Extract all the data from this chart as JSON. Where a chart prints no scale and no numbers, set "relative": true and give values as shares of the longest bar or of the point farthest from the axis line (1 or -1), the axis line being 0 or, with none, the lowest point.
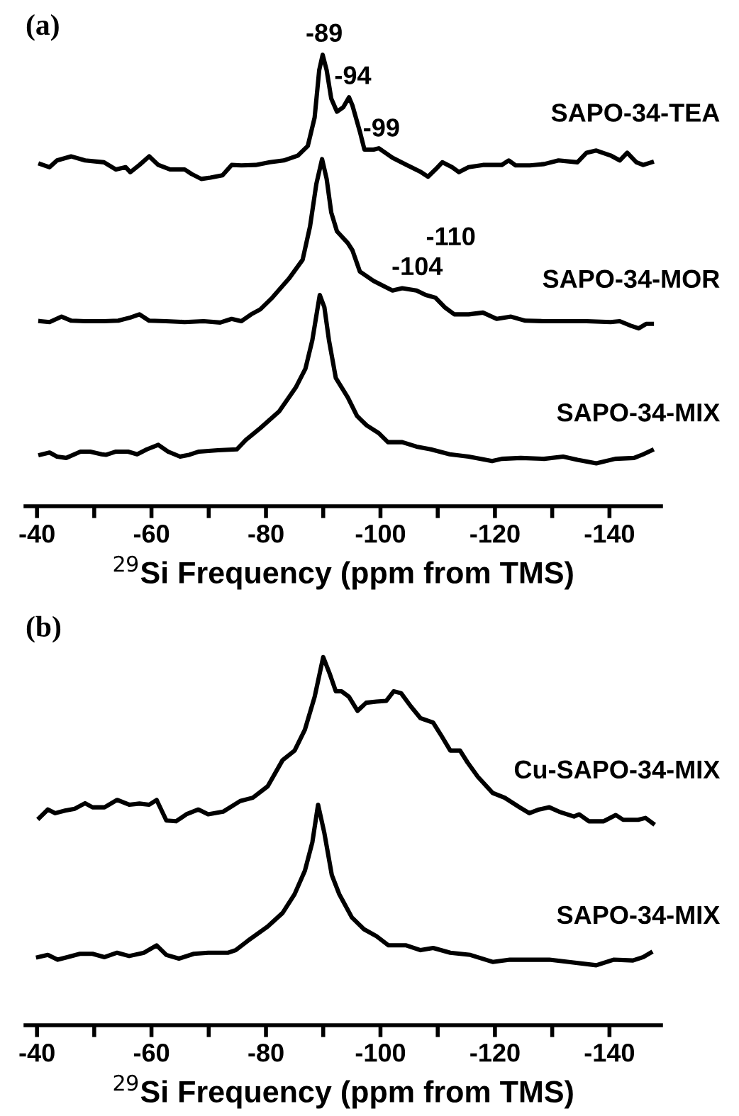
{
  "chart_data": [
    {
      "type": "line",
      "title": "(a)",
      "xlabel": "$^{29}$Si Frequency (ppm from TMS)",
      "relative": true,
      "xlim": [
        -38,
        -149
      ],
      "xticks": [
        -40,
        {
          "value": -50,
          "label": null
        },
        -60,
        {
          "value": -70,
          "label": null
        },
        -80,
        {
          "value": -90,
          "label": null
        },
        -100,
        {
          "value": -110,
          "label": null
        },
        -120,
        {
          "value": -130,
          "label": null
        },
        -140
      ],
      "series": [
        {
          "name": "SAPO-34-TEA",
          "color": "#000000",
          "x": [
            -40.6,
            -42.2,
            -43.5,
            -46.0,
            -48.4,
            -51.7,
            -53.8,
            -55.5,
            -56.3,
            -57.9,
            -59.6,
            -61.2,
            -63.3,
            -65.8,
            -67.0,
            -68.7,
            -70.3,
            -72.4,
            -74.0,
            -75.7,
            -78.2,
            -80.7,
            -83.1,
            -85.6,
            -87.3,
            -88.5,
            -89.3,
            -89.9,
            -90.6,
            -91.4,
            -92.4,
            -93.5,
            -94.5,
            -95.1,
            -96.4,
            -97.2,
            -98.8,
            -99.7,
            -102.1,
            -104.6,
            -107.1,
            -108.3,
            -109.6,
            -110.8,
            -112.5,
            -113.7,
            -115.4,
            -117.9,
            -121.2,
            -122.4,
            -123.6,
            -126.1,
            -128.6,
            -131.1,
            -134.4,
            -136.0,
            -137.7,
            -140.2,
            -141.8,
            -143.1,
            -144.7,
            -145.9,
            -147.4
          ],
          "values": [
            0.758,
            0.751,
            0.766,
            0.775,
            0.766,
            0.762,
            0.746,
            0.751,
            0.74,
            0.756,
            0.775,
            0.756,
            0.746,
            0.746,
            0.736,
            0.725,
            0.728,
            0.733,
            0.756,
            0.755,
            0.756,
            0.762,
            0.766,
            0.777,
            0.798,
            0.861,
            0.966,
            1.0,
            0.966,
            0.903,
            0.874,
            0.884,
            0.906,
            0.888,
            0.83,
            0.79,
            0.79,
            0.793,
            0.772,
            0.756,
            0.74,
            0.73,
            0.746,
            0.762,
            0.751,
            0.74,
            0.751,
            0.756,
            0.756,
            0.766,
            0.755,
            0.755,
            0.758,
            0.766,
            0.762,
            0.783,
            0.788,
            0.777,
            0.766,
            0.783,
            0.762,
            0.756,
            0.762
          ]
        },
        {
          "name": "SAPO-34-MOR",
          "color": "#000000",
          "x": [
            -40.6,
            -42.2,
            -44.3,
            -46.0,
            -48.4,
            -51.7,
            -54.2,
            -56.3,
            -57.9,
            -59.6,
            -62.5,
            -65.8,
            -69.1,
            -72.0,
            -74.0,
            -75.7,
            -77.4,
            -79.0,
            -81.1,
            -84.0,
            -86.4,
            -87.7,
            -88.8,
            -89.8,
            -90.6,
            -91.4,
            -92.4,
            -94.3,
            -95.1,
            -96.4,
            -98.8,
            -100.5,
            -102.1,
            -103.8,
            -106.3,
            -107.9,
            -109.6,
            -111.2,
            -112.9,
            -115.4,
            -117.9,
            -120.3,
            -122.8,
            -125.3,
            -128.6,
            -132.7,
            -136.0,
            -140.2,
            -141.8,
            -143.9,
            -145.1,
            -146.4,
            -147.4
          ],
          "values": [
            0.41,
            0.408,
            0.42,
            0.411,
            0.41,
            0.41,
            0.411,
            0.418,
            0.425,
            0.411,
            0.41,
            0.408,
            0.41,
            0.407,
            0.415,
            0.41,
            0.425,
            0.436,
            0.462,
            0.504,
            0.546,
            0.62,
            0.714,
            0.769,
            0.725,
            0.651,
            0.609,
            0.583,
            0.567,
            0.52,
            0.499,
            0.488,
            0.478,
            0.483,
            0.478,
            0.468,
            0.462,
            0.441,
            0.425,
            0.425,
            0.429,
            0.415,
            0.42,
            0.411,
            0.41,
            0.41,
            0.41,
            0.408,
            0.41,
            0.399,
            0.394,
            0.404,
            0.404
          ]
        },
        {
          "name": "SAPO-34-MIX",
          "color": "#000000",
          "x": [
            -40.6,
            -42.2,
            -43.5,
            -45.1,
            -47.6,
            -49.3,
            -51.3,
            -52.1,
            -53.8,
            -55.9,
            -57.5,
            -59.2,
            -61.2,
            -62.9,
            -65.0,
            -66.6,
            -68.3,
            -71.6,
            -74.9,
            -76.5,
            -79.0,
            -82.3,
            -85.2,
            -86.9,
            -88.1,
            -88.9,
            -89.4,
            -90.2,
            -91.0,
            -92.2,
            -94.3,
            -95.9,
            -97.6,
            -99.7,
            -101.3,
            -103.8,
            -106.3,
            -108.8,
            -112.1,
            -115.4,
            -119.5,
            -121.2,
            -124.5,
            -128.6,
            -131.9,
            -134.4,
            -137.7,
            -141.0,
            -144.3,
            -145.9,
            -147.4
          ],
          "values": [
            0.114,
            0.119,
            0.11,
            0.107,
            0.121,
            0.121,
            0.115,
            0.114,
            0.121,
            0.121,
            0.115,
            0.126,
            0.136,
            0.121,
            0.11,
            0.114,
            0.121,
            0.124,
            0.126,
            0.147,
            0.173,
            0.21,
            0.263,
            0.305,
            0.368,
            0.43,
            0.468,
            0.441,
            0.368,
            0.284,
            0.241,
            0.2,
            0.179,
            0.162,
            0.142,
            0.142,
            0.132,
            0.126,
            0.115,
            0.11,
            0.1,
            0.105,
            0.107,
            0.105,
            0.11,
            0.103,
            0.095,
            0.105,
            0.107,
            0.115,
            0.124
          ]
        }
      ],
      "annotations": [
        {
          "text": "-89",
          "x": -89,
          "y": 1.0
        },
        {
          "text": "-94",
          "x": -94,
          "y": 0.906
        },
        {
          "text": "-99",
          "x": -99,
          "y": 0.79
        },
        {
          "text": "-104",
          "x": -104,
          "y": 0.483
        },
        {
          "text": "-110",
          "x": -110,
          "y": 0.462
        }
      ]
    },
    {
      "type": "line",
      "title": "(b)",
      "xlabel": "$^{29}$Si Frequency (ppm from TMS)",
      "relative": true,
      "xlim": [
        -38,
        -149
      ],
      "xticks": [
        -40,
        {
          "value": -50,
          "label": null
        },
        -60,
        {
          "value": -70,
          "label": null
        },
        -80,
        {
          "value": -90,
          "label": null
        },
        -100,
        {
          "value": -110,
          "label": null
        },
        -120,
        {
          "value": -130,
          "label": null
        },
        -140
      ],
      "series": [
        {
          "name": "Cu-SAPO-34-MIX",
          "color": "#000000",
          "x": [
            -40.4,
            -41.9,
            -43.2,
            -44.9,
            -46.6,
            -48.4,
            -49.7,
            -51.8,
            -54.0,
            -56.1,
            -57.9,
            -59.6,
            -60.9,
            -62.6,
            -64.3,
            -66.1,
            -68.2,
            -69.9,
            -72.5,
            -75.5,
            -77.7,
            -80.3,
            -82.9,
            -85.0,
            -86.8,
            -88.5,
            -90.0,
            -91.1,
            -92.2,
            -93.2,
            -94.5,
            -96.0,
            -97.5,
            -99.3,
            -101.0,
            -102.3,
            -103.6,
            -105.3,
            -107.0,
            -109.2,
            -110.5,
            -112.2,
            -113.9,
            -115.2,
            -117.0,
            -119.6,
            -121.7,
            -124.3,
            -126.0,
            -127.7,
            -129.5,
            -131.2,
            -133.8,
            -134.7,
            -136.4,
            -139.0,
            -141.1,
            -142.4,
            -145.0,
            -146.3,
            -147.6
          ],
          "values": [
            0.563,
            0.586,
            0.576,
            0.583,
            0.588,
            0.603,
            0.592,
            0.592,
            0.612,
            0.599,
            0.602,
            0.599,
            0.612,
            0.556,
            0.554,
            0.573,
            0.586,
            0.573,
            0.58,
            0.609,
            0.618,
            0.649,
            0.72,
            0.746,
            0.803,
            0.892,
            1.0,
            0.956,
            0.907,
            0.907,
            0.892,
            0.854,
            0.876,
            0.879,
            0.881,
            0.907,
            0.902,
            0.866,
            0.834,
            0.822,
            0.79,
            0.746,
            0.746,
            0.714,
            0.675,
            0.631,
            0.618,
            0.592,
            0.576,
            0.586,
            0.592,
            0.58,
            0.567,
            0.573,
            0.554,
            0.554,
            0.571,
            0.558,
            0.558,
            0.563,
            0.548
          ]
        },
        {
          "name": "SAPO-34-MIX",
          "color": "#000000",
          "x": [
            -40.2,
            -41.9,
            -43.6,
            -45.3,
            -47.5,
            -49.7,
            -51.8,
            -54.0,
            -56.1,
            -58.7,
            -60.9,
            -62.6,
            -64.8,
            -67.4,
            -69.9,
            -73.4,
            -74.7,
            -76.8,
            -80.3,
            -82.9,
            -85.0,
            -86.8,
            -88.1,
            -89.1,
            -90.2,
            -91.5,
            -92.8,
            -95.0,
            -97.1,
            -99.3,
            -101.4,
            -104.5,
            -107.0,
            -109.2,
            -112.2,
            -115.7,
            -119.6,
            -122.6,
            -126.0,
            -129.5,
            -132.9,
            -137.7,
            -140.7,
            -144.1,
            -145.9,
            -147.2
          ],
          "values": [
            0.185,
            0.191,
            0.178,
            0.185,
            0.194,
            0.194,
            0.185,
            0.197,
            0.188,
            0.197,
            0.217,
            0.191,
            0.181,
            0.194,
            0.197,
            0.197,
            0.204,
            0.229,
            0.268,
            0.305,
            0.356,
            0.42,
            0.497,
            0.599,
            0.522,
            0.408,
            0.356,
            0.293,
            0.261,
            0.242,
            0.217,
            0.217,
            0.204,
            0.21,
            0.197,
            0.191,
            0.172,
            0.178,
            0.178,
            0.178,
            0.172,
            0.163,
            0.178,
            0.176,
            0.185,
            0.197
          ]
        }
      ]
    }
  ]
}
